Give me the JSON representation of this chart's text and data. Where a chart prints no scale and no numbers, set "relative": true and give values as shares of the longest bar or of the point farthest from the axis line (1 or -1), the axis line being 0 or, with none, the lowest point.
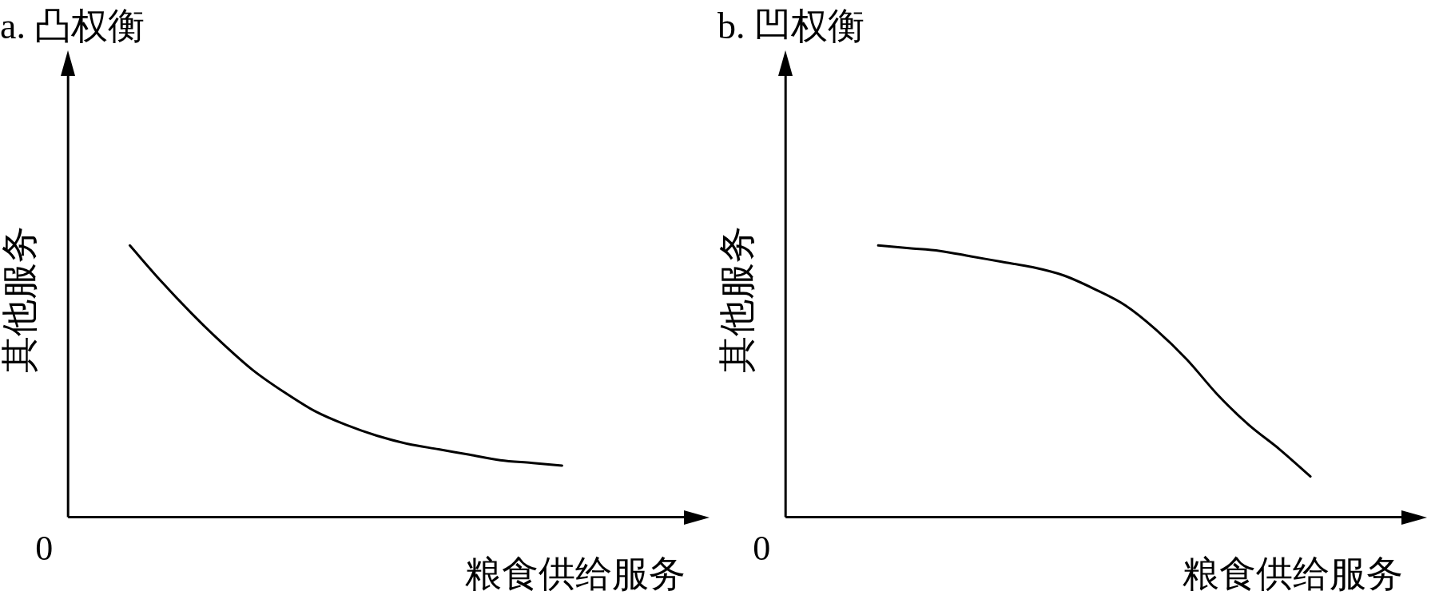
{
  "chart_data": [
    {
      "type": "line",
      "title": "a. 凸权衡",
      "xlabel": "粮食供给服务",
      "ylabel": "其他服务",
      "annotations": [
        "0"
      ],
      "relative": true,
      "grid": false,
      "marker": "none",
      "categories": [
        null,
        null,
        null,
        null,
        null,
        null,
        null,
        null,
        null,
        null,
        null,
        null,
        null,
        null,
        null,
        null,
        null,
        null,
        null,
        null,
        null
      ],
      "series": [
        {
          "color": "#000000",
          "values": [
            null,
            null,
            1.0,
            0.87,
            0.75,
            0.64,
            0.54,
            0.46,
            0.39,
            0.34,
            0.3,
            0.27,
            0.25,
            0.23,
            0.21,
            0.2,
            0.19,
            null,
            null,
            null,
            null
          ]
        }
      ]
    },
    {
      "type": "line",
      "title": "b. 凹权衡",
      "xlabel": "粮食供给服务",
      "ylabel": "其他服务",
      "annotations": [
        "0"
      ],
      "relative": true,
      "grid": false,
      "marker": "none",
      "categories": [
        null,
        null,
        null,
        null,
        null,
        null,
        null,
        null,
        null,
        null,
        null,
        null,
        null,
        null,
        null,
        null,
        null,
        null,
        null,
        null,
        null
      ],
      "series": [
        {
          "color": "#000000",
          "values": [
            null,
            null,
            null,
            1.0,
            0.99,
            0.98,
            0.96,
            0.94,
            0.92,
            0.89,
            0.84,
            0.78,
            0.69,
            0.58,
            0.45,
            0.34,
            0.25,
            0.15,
            null,
            null,
            null
          ]
        }
      ]
    }
  ]
}
